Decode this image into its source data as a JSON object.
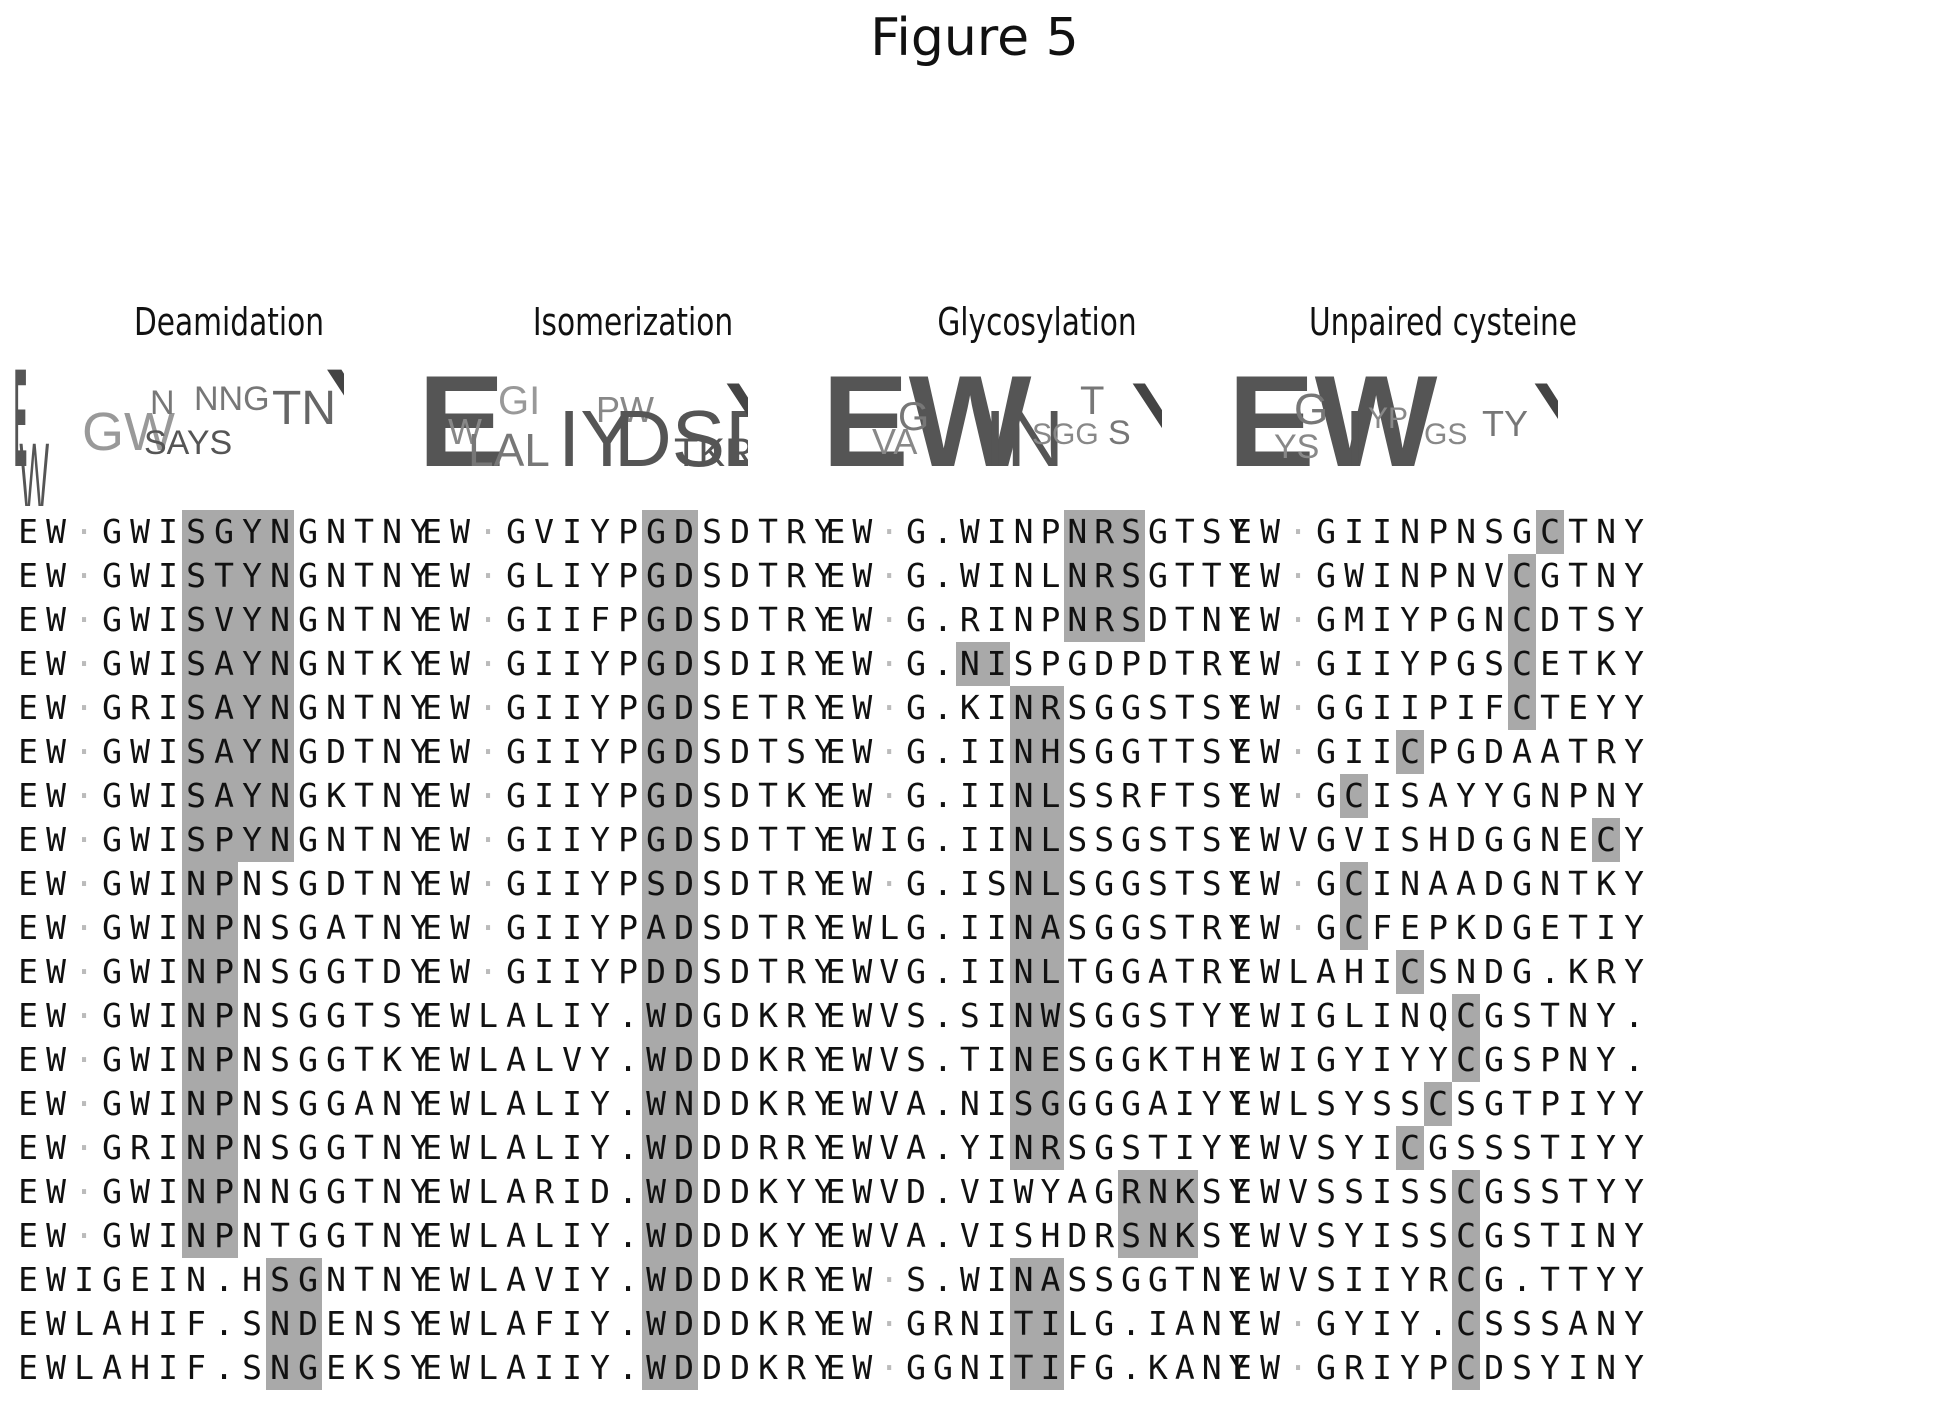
{
  "figure_title": "Figure 5",
  "panels": [
    {
      "title": "Deamidation",
      "logo_text": "EWGWINNNGTNY",
      "rows": [
        "EW GWISGYNGNTNY",
        "EW GWISTYNGNTNY",
        "EW GWISVYNGNTNY",
        "EW GWISAYNGNTKY",
        "EW GRISAYNGNTNY",
        "EW GWISAYNGDTNY",
        "EW GWISAYNGKTNY",
        "EW GWISPYNGNTNY",
        "EW GWINPNSGDTNY",
        "EW GWINPNSGATNY",
        "EW GWINPNSGGTDY",
        "EW GWINPNSGGTSY",
        "EW GWINPNSGGTKY",
        "EW GWINPNSGGANY",
        "EW GRINPNSGGTNY",
        "EW GWINPNNGGTNY",
        "EW GWINPNTGGTNY",
        "EWIGEIN.HSGNTNY",
        "EWLAHIF.SNDENSY",
        "EWLAHIF.SNGEKSY"
      ]
    },
    {
      "title": "Isomerization",
      "logo_text": "EWGIIYPDSDTRY",
      "rows": [
        "EW GVIYPGDSDTRY",
        "EW GLIYPGDSDTRY",
        "EW GIIFPGDSDTRY",
        "EW GIIYPGDSDIRY",
        "EW GIIYPGDSETRY",
        "EW GIIYPGDSDTSY",
        "EW GIIYPGDSDTKY",
        "EW GIIYPGDSDTTY",
        "EW GIIYPSDSDTRY",
        "EW GIIYPADSDTRY",
        "EW GIIYPDDSDTRY",
        "EWLALIY.WDGDKRY",
        "EWLALVY.WDDDKRY",
        "EWLALIY.WNDDKRY",
        "EWLALIY.WDDDRRY",
        "EWLARID.WDDDKYY",
        "EWLALIY.WDDDKYY",
        "EWLAVIY.WDDDKRY",
        "EWLAFIY.WDDDKRY",
        "EWLAIIY.WDDDKRY"
      ]
    },
    {
      "title": "Glycosylation",
      "logo_text": "EWGINSGGTSY",
      "rows": [
        "EW G.WINPNRSGTSY",
        "EW G.WINLNRSGTTY",
        "EW G.RINPNRSDTNY",
        "EW G.NISPGDPDTRY",
        "EW G.KINRSGGSTSY",
        "EW G.IINHSGGTTSY",
        "EW G.IINLSSRFTSY",
        "EWIG.IINLSSGSTSY",
        "EW G.ISNLSGGSTSY",
        "EWLG.IINASGGSTRY",
        "EWVG.IINLTGGATRY",
        "EWVS.SINWSGGSTYY",
        "EWVS.TINESGGKTHY",
        "EWVA.NISGGGGAIYY",
        "EWVA.YINRSGSTIYY",
        "EWVD.VIWYAGRNKSY",
        "EWVA.VISHDRSNKSY",
        "EW S.WINASSGGTNY",
        "EW GRNITILG.IANY",
        "EW GGNITIFG.KANY"
      ]
    },
    {
      "title": "Unpaired cysteine",
      "logo_text": "EWGIYPGSTNY",
      "rows": [
        "EW GIINPNSGCTNY",
        "EW GWINPNVCGTNY",
        "EW GMIYPGNCDTSY",
        "EW GIIYPGSCETKY",
        "EW GGIIPIFCTEYY",
        "EW GIICPGDAATRY",
        "EW GCISAYYGNPNY",
        "EWVGVISHDGGNECY",
        "EW GCINAADGNTKY",
        "EW GCFEPKDGETIY",
        "EWLAHICSNDG.KRY",
        "EWIGLINQCGSTNY.",
        "EWIGYIYYCGSPNY.",
        "EWLSYSSCSGTPIYY",
        "EWVSYICGSSSTIYY",
        "EWVSSISSCGSSTYY",
        "EWVSYISSCGSTINY",
        "EWVSIIYRCG.TTYY",
        "EW GYIY.CSSSANY",
        "EW GRIYPCDSYINY"
      ]
    }
  ]
}
